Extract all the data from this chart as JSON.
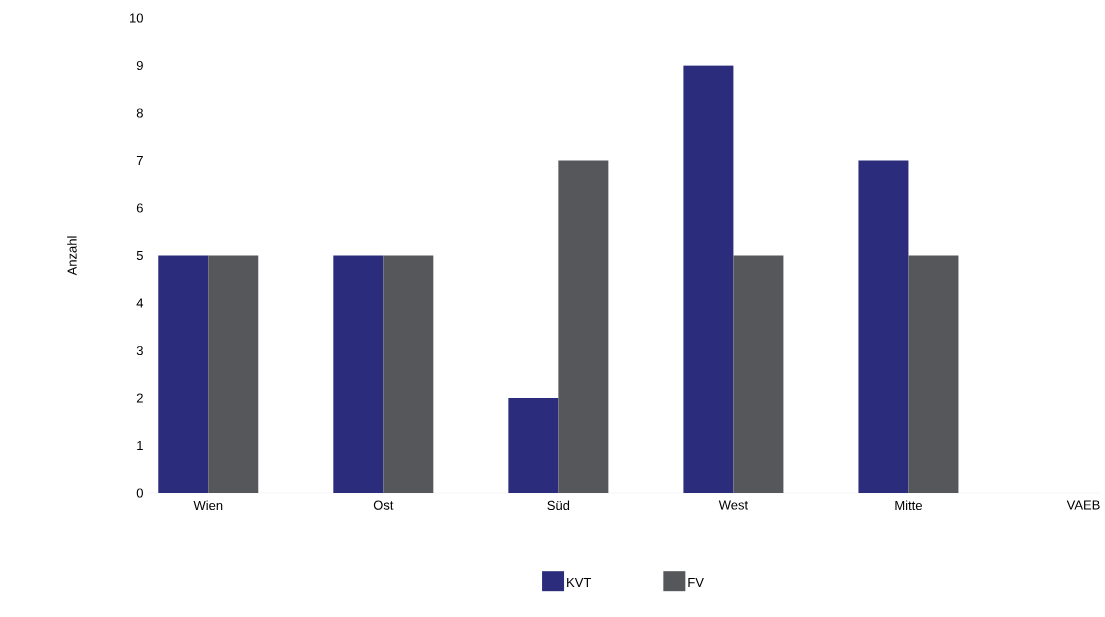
{
  "chart_data": {
    "type": "bar",
    "ylabel": "Anzahl",
    "categories": [
      "Wien",
      "Ost",
      "Süd",
      "West",
      "Mitte",
      "VAEB"
    ],
    "series": [
      {
        "name": "KVT",
        "color": "#2b2d7c",
        "values": [
          5,
          5,
          2,
          9,
          7,
          0
        ]
      },
      {
        "name": "FV",
        "color": "#55575b",
        "values": [
          5,
          5,
          7,
          5,
          5,
          0
        ]
      }
    ],
    "ylim": [
      0,
      10
    ],
    "yticks": [
      0,
      1,
      2,
      3,
      4,
      5,
      6,
      7,
      8,
      9,
      10
    ],
    "legend": "bottom"
  }
}
